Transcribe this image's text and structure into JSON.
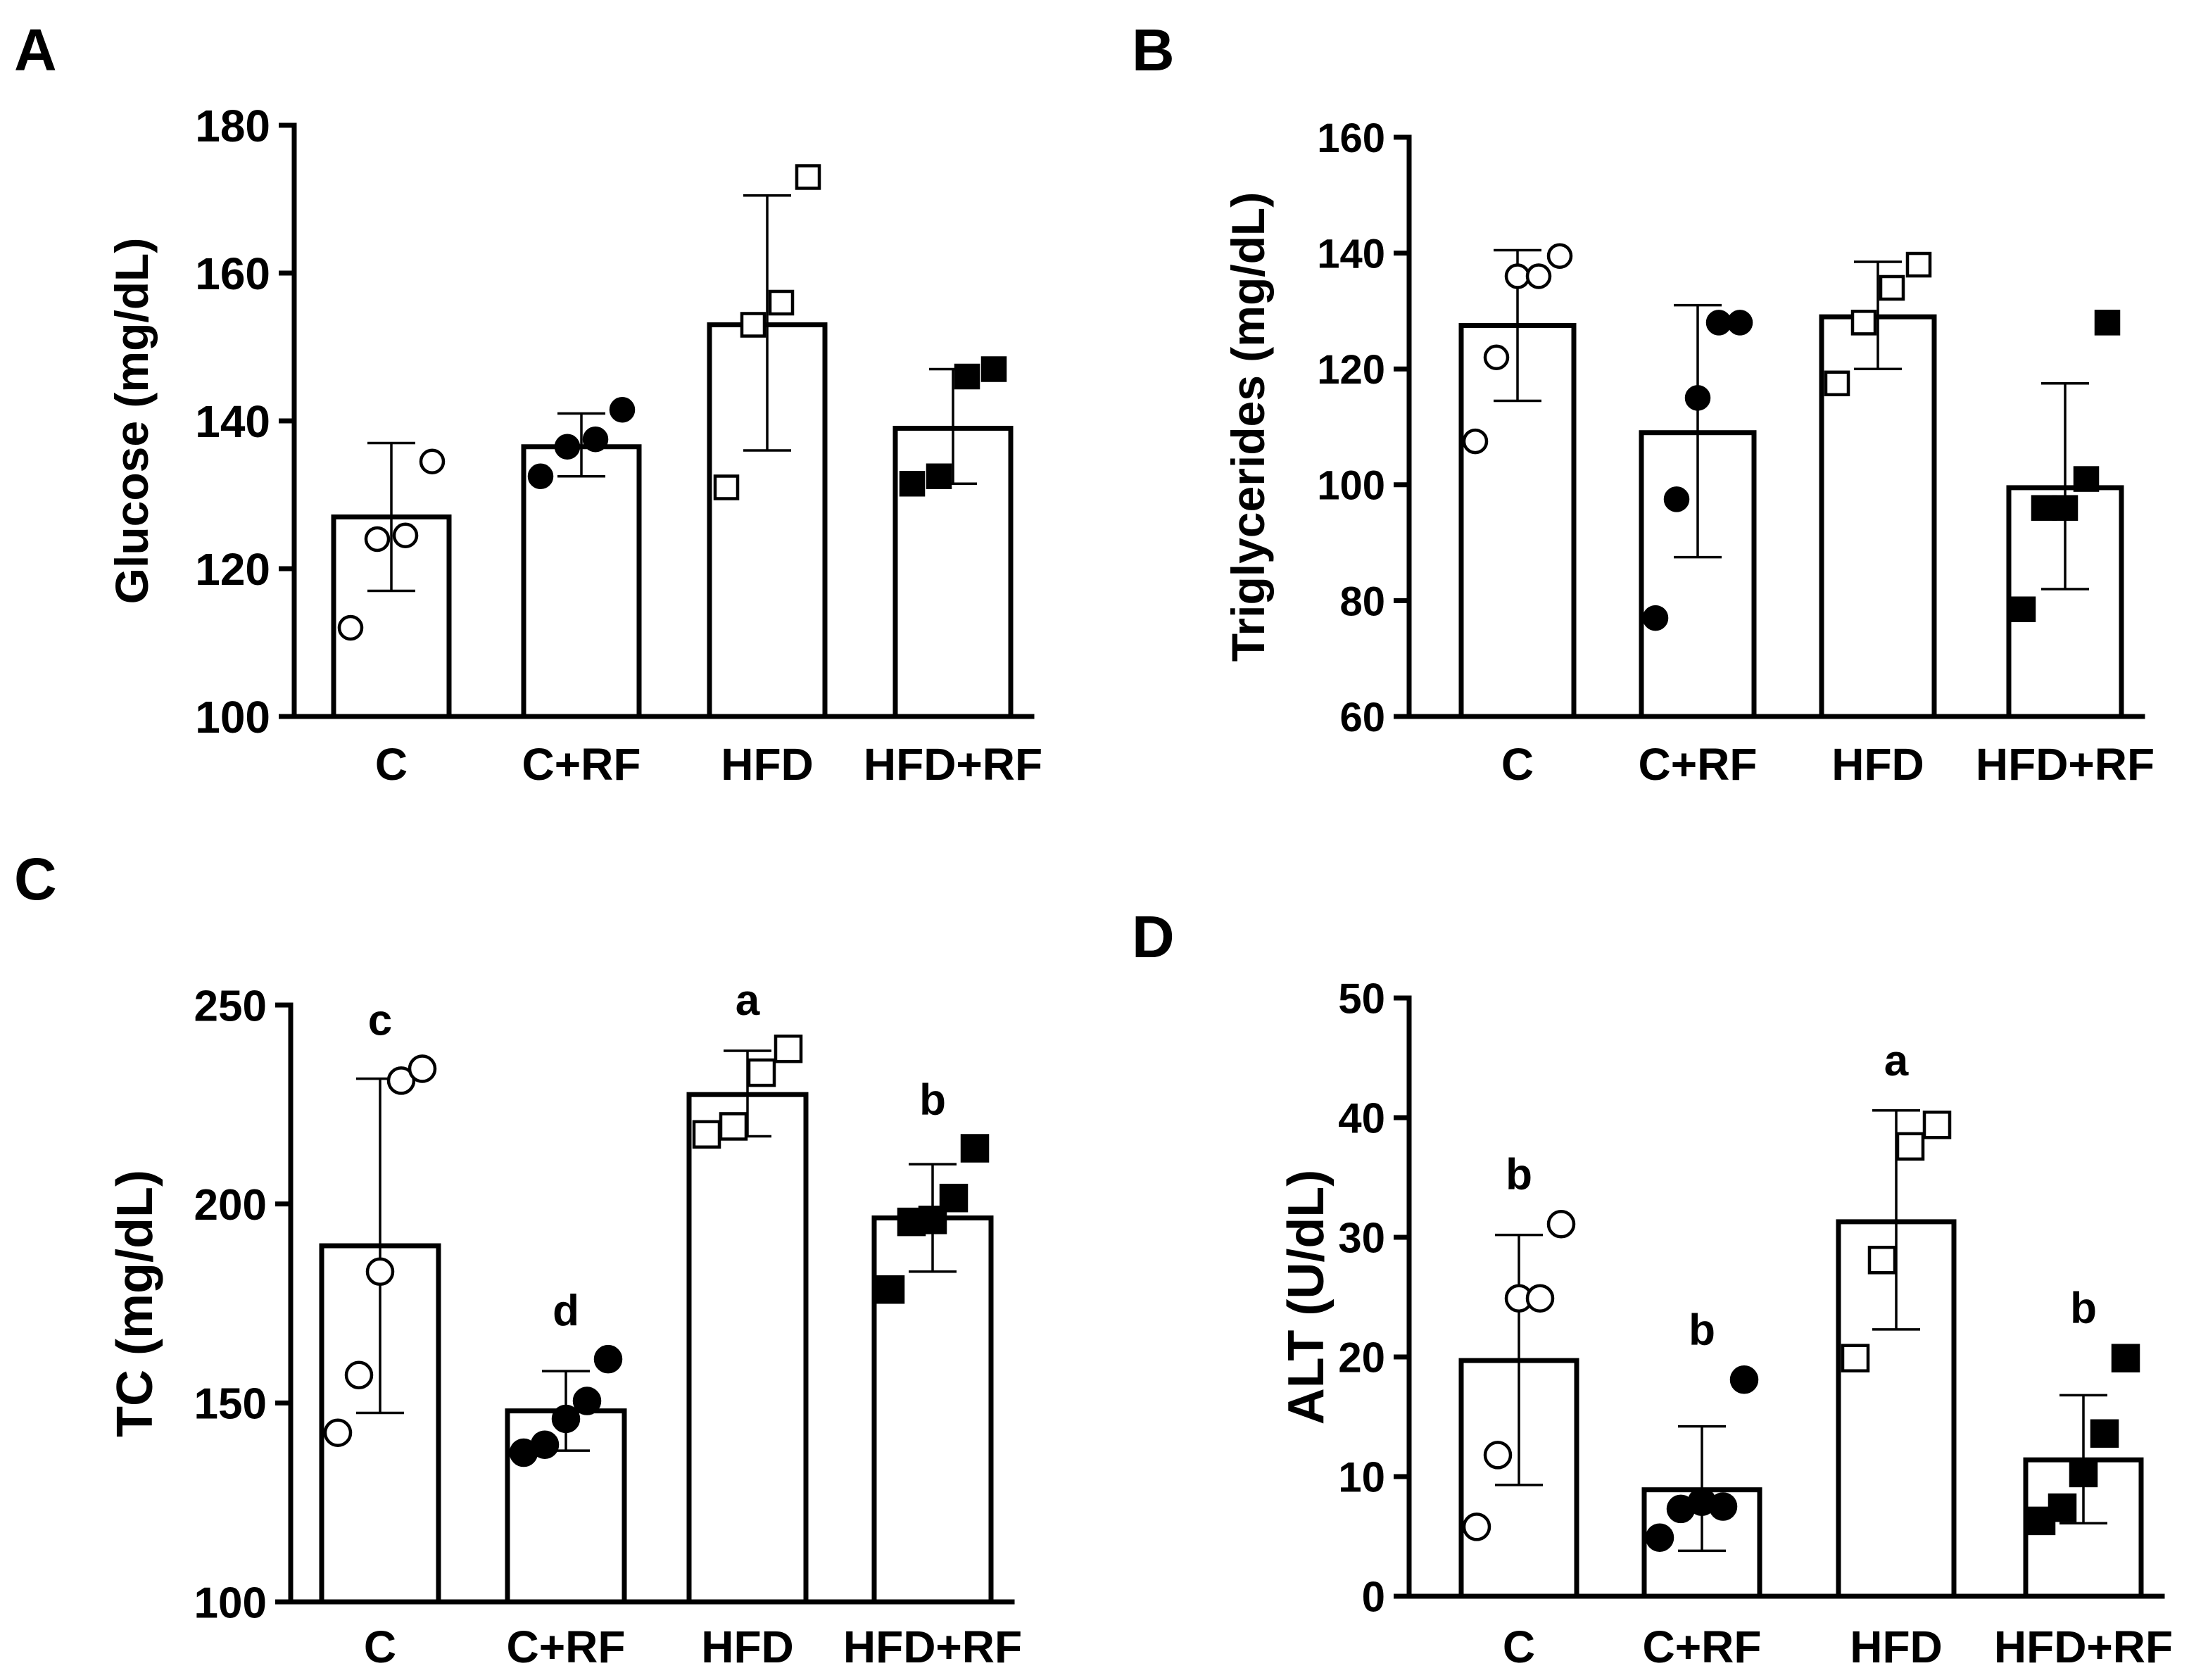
{
  "figure_title": "",
  "chart_data": [
    {
      "panel_label": "A",
      "type": "bar",
      "title": "",
      "xlabel": "",
      "ylabel": "Glucose (mg/dL)",
      "ylim": [
        100,
        180
      ],
      "yticks": [
        100,
        120,
        140,
        160,
        180
      ],
      "categories": [
        "C",
        "C+RF",
        "HFD",
        "HFD+RF"
      ],
      "markers": [
        "open-circle",
        "filled-circle",
        "open-square",
        "filled-square"
      ],
      "values": [
        127,
        136.5,
        153,
        139
      ],
      "err_low": [
        117,
        132.5,
        136,
        131.5
      ],
      "err_high": [
        137,
        141,
        170.5,
        147
      ],
      "points": [
        [
          112,
          124,
          124.5,
          134.5
        ],
        [
          132.5,
          136.5,
          137.5,
          141.5
        ],
        [
          131,
          153,
          156,
          173
        ],
        [
          131.5,
          132.5,
          146,
          147
        ]
      ],
      "letters": [
        "",
        "",
        "",
        ""
      ]
    },
    {
      "panel_label": "B",
      "type": "bar",
      "title": "",
      "xlabel": "",
      "ylabel": "Triglycerides (mg/dL)",
      "ylim": [
        60,
        160
      ],
      "yticks": [
        60,
        80,
        100,
        120,
        140,
        160
      ],
      "categories": [
        "C",
        "C+RF",
        "HFD",
        "HFD+RF"
      ],
      "markers": [
        "open-circle",
        "filled-circle",
        "open-square",
        "filled-square"
      ],
      "values": [
        127.5,
        109,
        129,
        99.5
      ],
      "err_low": [
        114.5,
        87.5,
        120,
        82
      ],
      "err_high": [
        140.5,
        131,
        138.5,
        117.5
      ],
      "points": [
        [
          107.5,
          122,
          136,
          136,
          139.5
        ],
        [
          77,
          97.5,
          115,
          128,
          128
        ],
        [
          117.5,
          128,
          134,
          138
        ],
        [
          78.5,
          96,
          96,
          101,
          128
        ]
      ],
      "letters": [
        "",
        "",
        "",
        ""
      ]
    },
    {
      "panel_label": "C",
      "type": "bar",
      "title": "",
      "xlabel": "",
      "ylabel": "TC (mg/dL)",
      "ylim": [
        100,
        250
      ],
      "yticks": [
        100,
        150,
        200,
        250
      ],
      "categories": [
        "C",
        "C+RF",
        "HFD",
        "HFD+RF"
      ],
      "markers": [
        "open-circle",
        "filled-circle",
        "open-square",
        "filled-square"
      ],
      "values": [
        189.5,
        148,
        227.5,
        196.5
      ],
      "err_low": [
        147.5,
        138,
        217,
        183
      ],
      "err_high": [
        231.5,
        158,
        238.5,
        210
      ],
      "points": [
        [
          142.5,
          157,
          183,
          231,
          234
        ],
        [
          137.5,
          139.5,
          146,
          150.5,
          161
        ],
        [
          217.5,
          219.5,
          233,
          239
        ],
        [
          178.5,
          195.5,
          196,
          201.5,
          214
        ]
      ],
      "letters": [
        "c",
        "d",
        "a",
        "b"
      ]
    },
    {
      "panel_label": "D",
      "type": "bar",
      "title": "",
      "xlabel": "",
      "ylabel": "ALT (U/dL)",
      "ylim": [
        0,
        50
      ],
      "yticks": [
        0,
        10,
        20,
        30,
        40,
        50
      ],
      "categories": [
        "C",
        "C+RF",
        "HFD",
        "HFD+RF"
      ],
      "markers": [
        "open-circle",
        "filled-circle",
        "open-square",
        "filled-square"
      ],
      "values": [
        19.7,
        8.9,
        31.3,
        11.4
      ],
      "err_low": [
        9.3,
        3.8,
        22.3,
        6.1
      ],
      "err_high": [
        30.2,
        14.2,
        40.6,
        16.8
      ],
      "points": [
        [
          5.8,
          11.8,
          24.9,
          24.9,
          31.1
        ],
        [
          4.9,
          7.3,
          7.9,
          7.5,
          18.1
        ],
        [
          19.9,
          28.1,
          37.6,
          39.4
        ],
        [
          6.3,
          7.4,
          10.3,
          13.6,
          19.9
        ]
      ],
      "letters": [
        "b",
        "b",
        "a",
        "b"
      ]
    }
  ]
}
